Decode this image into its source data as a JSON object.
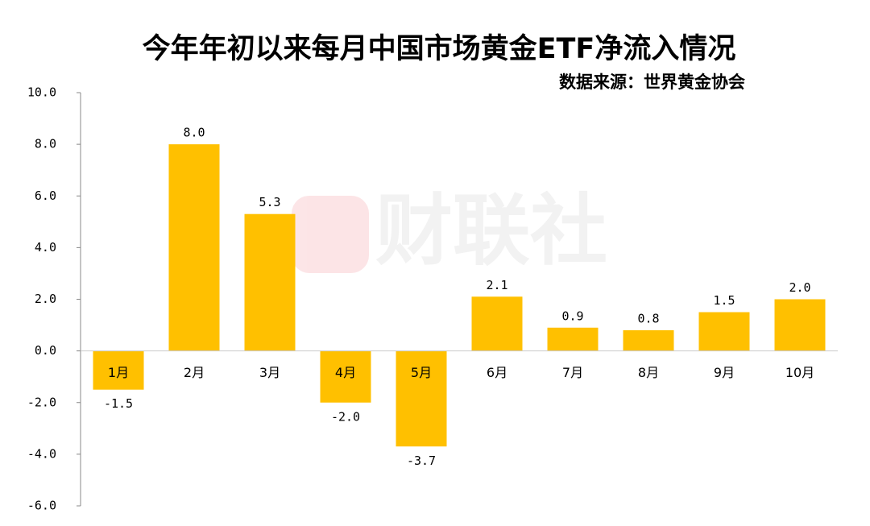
{
  "chart_data": {
    "type": "bar",
    "title": "今年年初以来每月中国市场黄金ETF净流入情况",
    "subtitle": "数据来源：世界黄金协会",
    "watermark": "财联社",
    "categories": [
      "1月",
      "2月",
      "3月",
      "4月",
      "5月",
      "6月",
      "7月",
      "8月",
      "9月",
      "10月"
    ],
    "values": [
      -1.5,
      8.0,
      5.3,
      -2.0,
      -3.7,
      2.1,
      0.9,
      0.8,
      1.5,
      2.0
    ],
    "value_labels": [
      "-1.5",
      "8.0",
      "5.3",
      "-2.0",
      "-3.7",
      "2.1",
      "0.9",
      "0.8",
      "1.5",
      "2.0"
    ],
    "color": "#FFC000",
    "ylim": [
      -6,
      10
    ],
    "yticks": [
      {
        "value": -6,
        "label": "-6.0"
      },
      {
        "value": -4,
        "label": "-4.0"
      },
      {
        "value": -2,
        "label": "-2.0"
      },
      {
        "value": 0,
        "label": "0.0"
      },
      {
        "value": 2,
        "label": "2.0"
      },
      {
        "value": 4,
        "label": "4.0"
      },
      {
        "value": 6,
        "label": "6.0"
      },
      {
        "value": 8,
        "label": "8.0"
      },
      {
        "value": 10,
        "label": "10.0"
      }
    ],
    "grid": false
  }
}
